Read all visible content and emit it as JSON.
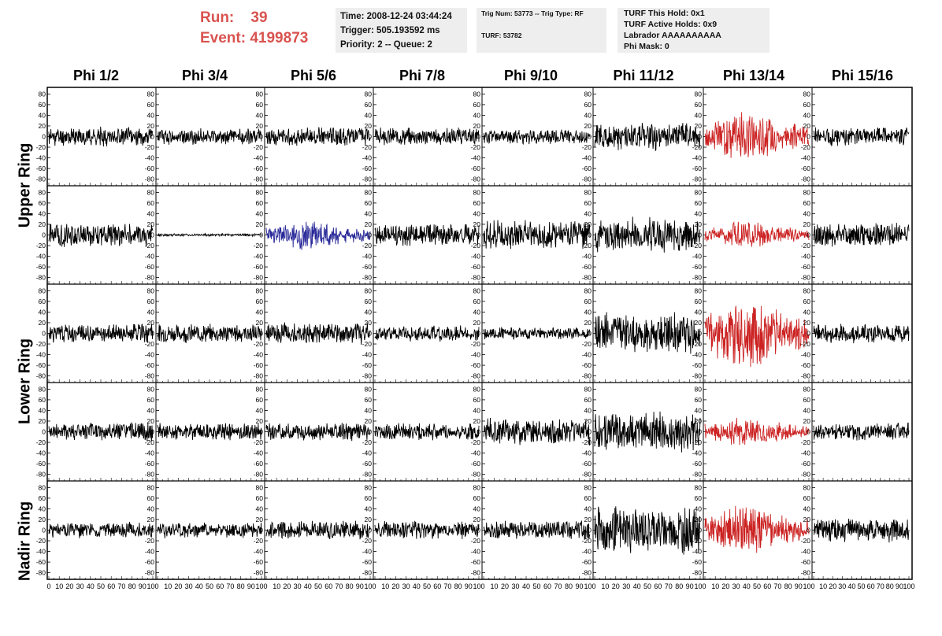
{
  "header": {
    "run_label": "Run:",
    "run_value": "39",
    "event_label": "Event:",
    "event_value": "4199873",
    "box1": {
      "time": "Time: 2008-12-24 03:44:24",
      "trigger": "Trigger: 505.193592 ms",
      "priority": "Priority: 2 -- Queue: 2"
    },
    "box2": {
      "trig": "Trig Num: 53773 -- Trig Type: RF",
      "turf": "TURF: 53782"
    },
    "box3": {
      "hold": "TURF This Hold: 0x1",
      "active": "TURF Active Holds: 0x9",
      "labrador": "Labrador AAAAAAAAAA",
      "mask": "Phi Mask: 0"
    }
  },
  "columns": [
    "Phi 1/2",
    "Phi 3/4",
    "Phi 5/6",
    "Phi 7/8",
    "Phi 9/10",
    "Phi 11/12",
    "Phi 13/14",
    "Phi 15/16"
  ],
  "rings": [
    "Upper Ring",
    "Lower Ring",
    "Nadir Ring"
  ],
  "colors": {
    "normal": "#000000",
    "highlight": "#cc2222",
    "blue": "#2a2a9a"
  },
  "chart_data": {
    "type": "line",
    "description_rows": 5,
    "ylim": [
      -85,
      85
    ],
    "y_ticks": [
      -80,
      -60,
      -40,
      -20,
      0,
      20,
      40,
      60,
      80
    ],
    "xlim": [
      0,
      100
    ],
    "x_ticks": [
      0,
      10,
      20,
      30,
      40,
      50,
      60,
      70,
      80,
      90,
      100
    ],
    "points_per_trace": 256,
    "panels": [
      [
        {
          "amp": 14,
          "color": "normal",
          "seed": 11
        },
        {
          "amp": 12,
          "color": "normal",
          "seed": 12
        },
        {
          "amp": 14,
          "color": "normal",
          "seed": 13
        },
        {
          "amp": 13,
          "color": "normal",
          "seed": 14
        },
        {
          "amp": 11,
          "color": "normal",
          "seed": 15
        },
        {
          "amp": 20,
          "color": "normal",
          "seed": 16
        },
        {
          "amp": 30,
          "color": "highlight",
          "seed": 17
        },
        {
          "amp": 14,
          "color": "normal",
          "seed": 18
        }
      ],
      [
        {
          "amp": 18,
          "color": "normal",
          "seed": 21
        },
        {
          "amp": 2,
          "color": "normal",
          "seed": 22
        },
        {
          "amp": 18,
          "color": "blue",
          "seed": 23
        },
        {
          "amp": 16,
          "color": "normal",
          "seed": 24
        },
        {
          "amp": 22,
          "color": "normal",
          "seed": 25
        },
        {
          "amp": 26,
          "color": "normal",
          "seed": 26
        },
        {
          "amp": 16,
          "color": "highlight",
          "seed": 27
        },
        {
          "amp": 18,
          "color": "normal",
          "seed": 28
        }
      ],
      [
        {
          "amp": 14,
          "color": "normal",
          "seed": 31
        },
        {
          "amp": 14,
          "color": "normal",
          "seed": 32
        },
        {
          "amp": 16,
          "color": "normal",
          "seed": 33
        },
        {
          "amp": 12,
          "color": "normal",
          "seed": 34
        },
        {
          "amp": 9,
          "color": "normal",
          "seed": 35
        },
        {
          "amp": 30,
          "color": "normal",
          "seed": 36
        },
        {
          "amp": 45,
          "color": "highlight",
          "seed": 37
        },
        {
          "amp": 14,
          "color": "normal",
          "seed": 38
        }
      ],
      [
        {
          "amp": 14,
          "color": "normal",
          "seed": 41
        },
        {
          "amp": 13,
          "color": "normal",
          "seed": 42
        },
        {
          "amp": 13,
          "color": "normal",
          "seed": 43
        },
        {
          "amp": 13,
          "color": "normal",
          "seed": 44
        },
        {
          "amp": 20,
          "color": "normal",
          "seed": 45
        },
        {
          "amp": 30,
          "color": "normal",
          "seed": 46
        },
        {
          "amp": 17,
          "color": "highlight",
          "seed": 47
        },
        {
          "amp": 14,
          "color": "normal",
          "seed": 48
        }
      ],
      [
        {
          "amp": 12,
          "color": "normal",
          "seed": 51
        },
        {
          "amp": 12,
          "color": "normal",
          "seed": 52
        },
        {
          "amp": 14,
          "color": "normal",
          "seed": 53
        },
        {
          "amp": 14,
          "color": "normal",
          "seed": 54
        },
        {
          "amp": 14,
          "color": "normal",
          "seed": 55
        },
        {
          "amp": 35,
          "color": "normal",
          "seed": 56
        },
        {
          "amp": 30,
          "color": "highlight",
          "seed": 57
        },
        {
          "amp": 18,
          "color": "normal",
          "seed": 58
        }
      ]
    ]
  }
}
